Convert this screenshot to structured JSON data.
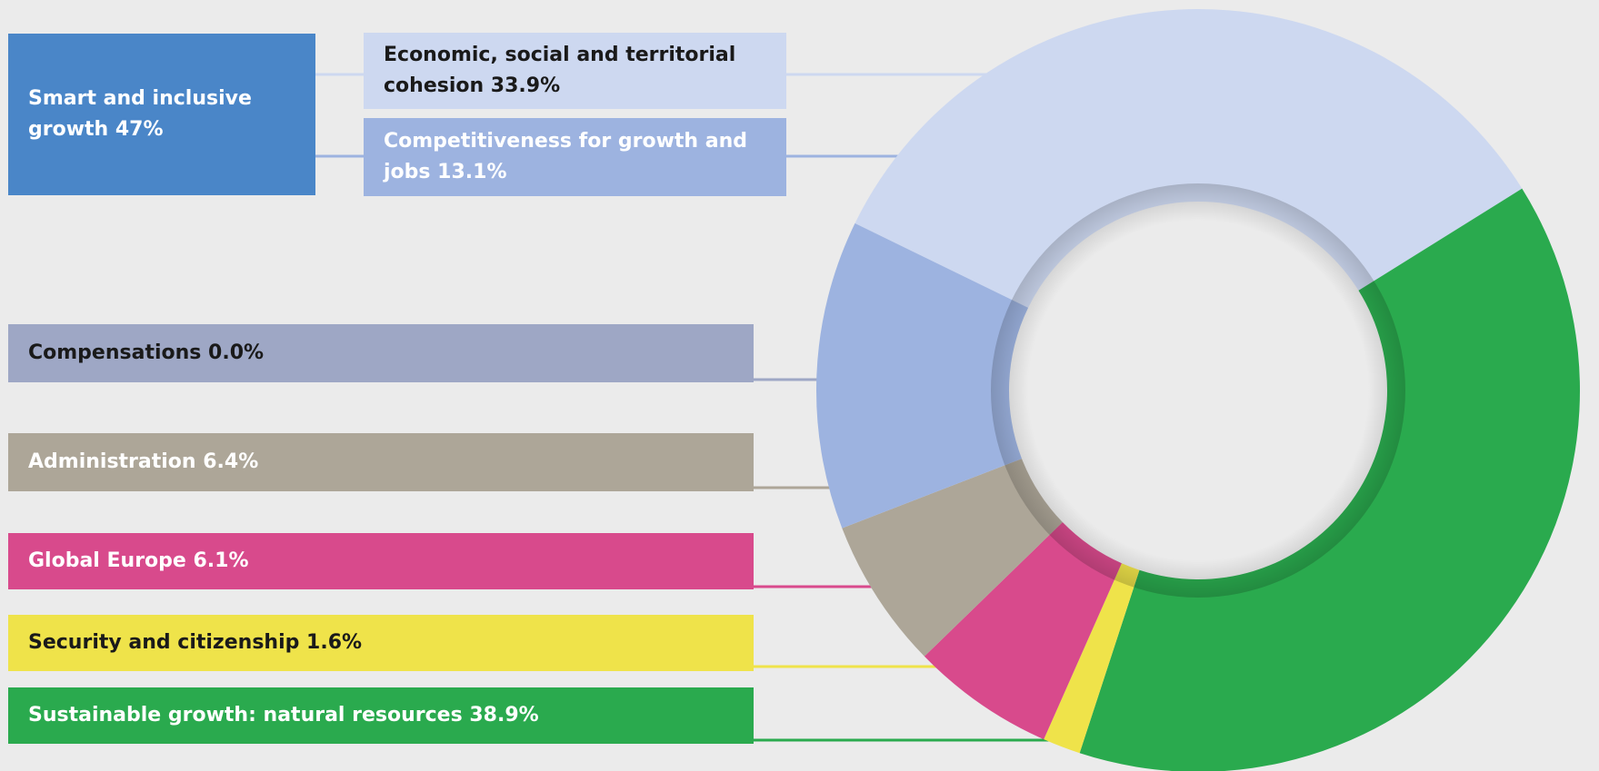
{
  "chart_data": {
    "type": "pie",
    "subtype": "donut",
    "group": {
      "label": "Smart and inclusive growth 47%",
      "color": "#4a86c8",
      "text_color": "#ffffff"
    },
    "slices": [
      {
        "id": "cohesion",
        "label": "Economic, social and territorial cohesion 33.9%",
        "value": 33.9,
        "color": "#cdd8f0",
        "text_color": "#1a1a1a"
      },
      {
        "id": "competitiveness",
        "label": "Competitiveness for growth and jobs 13.1%",
        "value": 13.1,
        "color": "#9db3e0",
        "text_color": "#ffffff"
      },
      {
        "id": "compensations",
        "label": "Compensations 0.0%",
        "value": 0.0,
        "color": "#9ea7c5",
        "text_color": "#1a1a1a"
      },
      {
        "id": "administration",
        "label": "Administration 6.4%",
        "value": 6.4,
        "color": "#ada698",
        "text_color": "#ffffff"
      },
      {
        "id": "global-europe",
        "label": "Global Europe 6.1%",
        "value": 6.1,
        "color": "#d84a8c",
        "text_color": "#ffffff"
      },
      {
        "id": "security",
        "label": "Security and citizenship 1.6%",
        "value": 1.6,
        "color": "#efe34a",
        "text_color": "#1a1a1a"
      },
      {
        "id": "sustainable",
        "label": "Sustainable growth: natural resources 38.9%",
        "value": 38.9,
        "color": "#2aaa4e",
        "text_color": "#ffffff"
      }
    ],
    "legend_placement": "left"
  }
}
